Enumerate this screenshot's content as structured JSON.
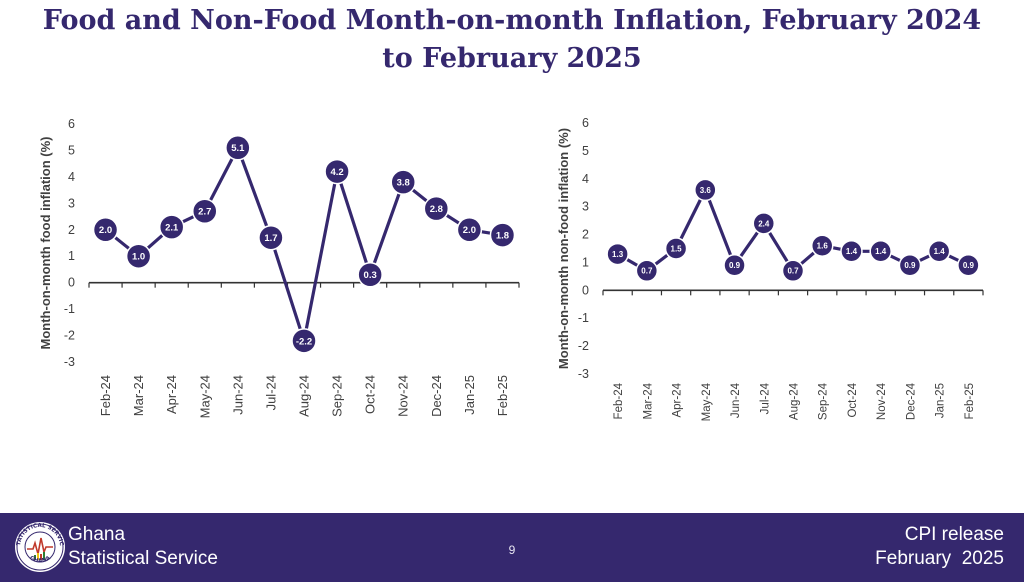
{
  "title_line1": "Food and Non-Food Month-on-month Inflation, February 2024",
  "title_line2": "to February 2025",
  "chart_data": [
    {
      "type": "line",
      "ylabel": "Month-on-month food inflation (%)",
      "categories": [
        "Feb-24",
        "Mar-24",
        "Apr-24",
        "May-24",
        "Jun-24",
        "Jul-24",
        "Aug-24",
        "Sep-24",
        "Oct-24",
        "Nov-24",
        "Dec-24",
        "Jan-25",
        "Feb-25"
      ],
      "values": [
        2.0,
        1.0,
        2.1,
        2.7,
        5.1,
        1.7,
        -2.2,
        4.2,
        0.3,
        3.8,
        2.8,
        2.0,
        1.8
      ],
      "data_labels": [
        "2.0",
        "1.0",
        "2.1",
        "2.7",
        "5.1",
        "1.7",
        "-2.2",
        "4.2",
        "0.3",
        "3.8",
        "2.8",
        "2.0",
        "1.8"
      ],
      "ylim": [
        -3,
        6
      ],
      "yticks": [
        "-3",
        "-2",
        "-1",
        "0",
        "1",
        "2",
        "3",
        "4",
        "5",
        "6"
      ],
      "grid": false,
      "color": "#35286e"
    },
    {
      "type": "line",
      "ylabel": "Month-on-month non-food inflation (%)",
      "categories": [
        "Feb-24",
        "Mar-24",
        "Apr-24",
        "May-24",
        "Jun-24",
        "Jul-24",
        "Aug-24",
        "Sep-24",
        "Oct-24",
        "Nov-24",
        "Dec-24",
        "Jan-25",
        "Feb-25"
      ],
      "values": [
        1.3,
        0.7,
        1.5,
        3.6,
        0.9,
        2.4,
        0.7,
        1.6,
        1.4,
        1.4,
        0.9,
        1.4,
        0.9
      ],
      "data_labels": [
        "1.3",
        "0.7",
        "1.5",
        "3.6",
        "0.9",
        "2.4",
        "0.7",
        "1.6",
        "1.4",
        "1.4",
        "0.9",
        "1.4",
        "0.9"
      ],
      "ylim": [
        -3,
        6
      ],
      "yticks": [
        "-3",
        "-2",
        "-1",
        "0",
        "1",
        "2",
        "3",
        "4",
        "5",
        "6"
      ],
      "grid": false,
      "color": "#35286e"
    }
  ],
  "footer": {
    "org_line1": "Ghana",
    "org_line2": "Statistical Service",
    "page_number": "9",
    "release_line1": "CPI release",
    "release_line2": "February  2025",
    "logo_text_top": "STATISTICAL SERVICE",
    "logo_text_bottom": "GHANA",
    "background": "#35286e"
  }
}
